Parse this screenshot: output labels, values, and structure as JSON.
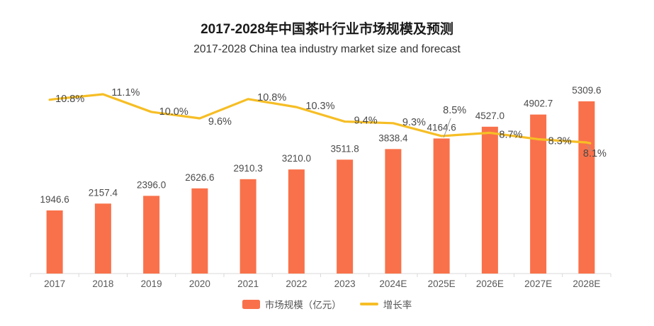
{
  "header": {
    "title": "2017-2028年中国茶叶行业市场规模及预测",
    "subtitle": "2017-2028 China tea industry market size and forecast"
  },
  "legend": {
    "items": [
      {
        "label": "市场规模（亿元）",
        "type": "bar"
      },
      {
        "label": "增长率",
        "type": "line"
      }
    ]
  },
  "colors": {
    "bar": "#F9714A",
    "line": "#F6BE25",
    "axis": "#D9D9D9",
    "data_label": "#4A4A4A",
    "axis_label": "#595959",
    "leader_line": "#999999",
    "title": "#1A1A1A",
    "subtitle": "#333333"
  },
  "chart_data": {
    "type": "bar",
    "subtype": "combo-bar-line",
    "title": "2017-2028年中国茶叶行业市场规模及预测",
    "subtitle": "2017-2028 China tea industry market size and forecast",
    "categories": [
      "2017",
      "2018",
      "2019",
      "2020",
      "2021",
      "2022",
      "2023",
      "2024E",
      "2025E",
      "2026E",
      "2027E",
      "2028E"
    ],
    "series": [
      {
        "name": "市场规模（亿元）",
        "type": "bar",
        "unit": "亿元",
        "color": "#F9714A",
        "values": [
          1946.6,
          2157.4,
          2396.0,
          2626.6,
          2910.3,
          3210.0,
          3511.8,
          3838.4,
          4164.6,
          4527.0,
          4902.7,
          5309.6
        ]
      },
      {
        "name": "增长率",
        "type": "line",
        "unit": "%",
        "color": "#F6BE25",
        "values": [
          10.8,
          11.1,
          10.0,
          9.6,
          10.8,
          10.3,
          9.4,
          9.3,
          8.5,
          8.7,
          8.3,
          8.1
        ]
      }
    ],
    "xlabel": "",
    "ylabel": "",
    "left_axis_min": 0,
    "grid": false,
    "value_labels_shown": true,
    "legend_position": "bottom"
  }
}
